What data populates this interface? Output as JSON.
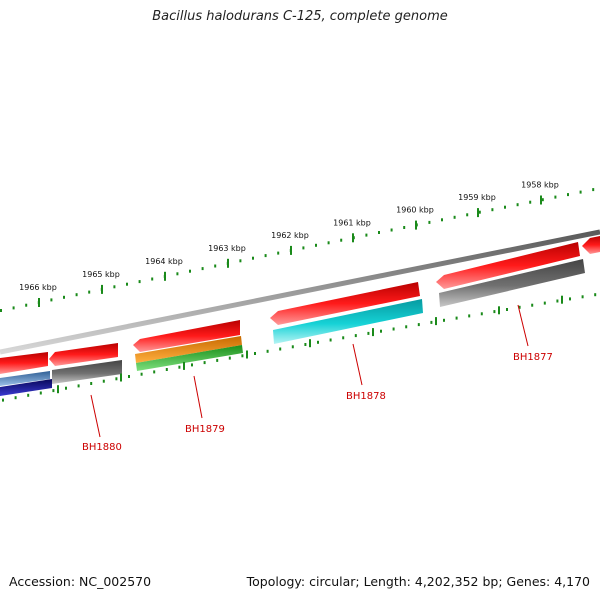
{
  "title": "Bacillus halodurans C-125, complete genome",
  "footer": {
    "accession": "Accession: NC_002570",
    "topology": "Topology: circular; Length: 4,202,352 bp; Genes: 4,170"
  },
  "colors": {
    "backbone": "#8a8a8a",
    "tick": "#1a8a1a",
    "tick_label": "#111111",
    "gene_label": "#cc0000",
    "red": "#ee1111",
    "gray": "#666666",
    "cyan": "#11c8cc",
    "orange": "#f08a10",
    "green": "#3cb83c",
    "blue": "#14149a",
    "steelblue": "#4a7ab0"
  },
  "ticks": [
    {
      "label": "1966 kbp"
    },
    {
      "label": "1965 kbp"
    },
    {
      "label": "1964 kbp"
    },
    {
      "label": "1963 kbp"
    },
    {
      "label": "1962 kbp"
    },
    {
      "label": "1961 kbp"
    },
    {
      "label": "1960 kbp"
    },
    {
      "label": "1959 kbp"
    },
    {
      "label": "1958 kbp"
    }
  ],
  "gene_labels": [
    {
      "name": "BH1880"
    },
    {
      "name": "BH1879"
    },
    {
      "name": "BH1878"
    },
    {
      "name": "BH1877"
    }
  ]
}
